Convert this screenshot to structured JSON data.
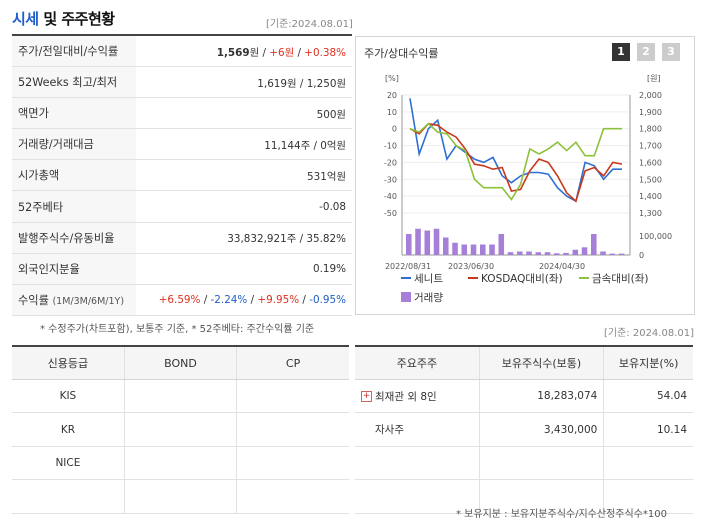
{
  "header": {
    "title_blue": "시세",
    "title_rest": "및 주주현황",
    "date": "[기준:2024.08.01]"
  },
  "info": [
    {
      "label": "주가/전일대비/수익률",
      "price": "1,569",
      "unit": "원",
      "change": "+6원",
      "rate": "+0.38%"
    },
    {
      "label": "52Weeks 최고/최저",
      "value": "1,619원 / 1,250원"
    },
    {
      "label": "액면가",
      "value": "500원"
    },
    {
      "label": "거래량/거래대금",
      "value": "11,144주 / 0억원"
    },
    {
      "label": "시가총액",
      "value": "531억원"
    },
    {
      "label": "52주베타",
      "value": "-0.08"
    },
    {
      "label": "발행주식수/유동비율",
      "value": "33,832,921주 / 35.82%"
    },
    {
      "label": "외국인지분율",
      "value": "0.19%"
    },
    {
      "label": "수익률",
      "period": "(1M/3M/6M/1Y)",
      "r1": "+6.59%",
      "r2": "-2.24%",
      "r3": "+9.95%",
      "r4": "-0.95%"
    }
  ],
  "note_left": "* 수정주가(차트포함), 보통주 기준, * 52주베타: 주간수익률 기준",
  "chart_panel": {
    "title": "주가/상대수익률",
    "tabs": [
      "1",
      "2",
      "3"
    ],
    "date": "[기준: 2024.08.01]"
  },
  "chart_data": {
    "type": "line",
    "left_unit": "[%]",
    "right_unit": "[원]",
    "left_ticks": [
      20,
      10,
      0,
      -10,
      -20,
      -30,
      -40,
      -50
    ],
    "right_ticks": [
      "2,000",
      "1,900",
      "1,800",
      "1,700",
      "1,600",
      "1,500",
      "1,400",
      "1,300"
    ],
    "volume_ticks": [
      "100,000",
      "0"
    ],
    "x_labels": [
      "2022/08/31",
      "2023/06/30",
      "2024/04/30"
    ],
    "ylim_pct": [
      -50,
      20
    ],
    "series": [
      {
        "name": "세니트",
        "color": "#2f6fd1",
        "values": [
          18,
          -15,
          0,
          5,
          -18,
          -10,
          -14,
          -18,
          -20,
          -17,
          -28,
          -32,
          -28,
          -26,
          -26,
          -27,
          -35,
          -40,
          -43,
          -20,
          -22,
          -30,
          -24,
          -24
        ]
      },
      {
        "name": "KOSDAQ대비(좌)",
        "color": "#c8381c",
        "values": [
          0,
          -3,
          3,
          2,
          -2,
          -5,
          -12,
          -21,
          -22,
          -24,
          -23,
          -37,
          -36,
          -25,
          -18,
          -20,
          -28,
          -38,
          -43,
          -25,
          -23,
          -28,
          -20,
          -21
        ]
      },
      {
        "name": "금속대비(좌)",
        "color": "#8dc13a",
        "values": [
          0,
          -2,
          3,
          -2,
          -3,
          -10,
          -13,
          -30,
          -35,
          -35,
          -35,
          -42,
          -33,
          -12,
          -15,
          -12,
          -8,
          -13,
          -8,
          -16,
          -16,
          0,
          0,
          0
        ]
      }
    ],
    "volume": {
      "name": "거래량",
      "color": "#a57fd8",
      "values": [
        0.6,
        0.75,
        0.7,
        0.75,
        0.5,
        0.35,
        0.3,
        0.3,
        0.3,
        0.3,
        0.6,
        0.08,
        0.1,
        0.1,
        0.08,
        0.08,
        0.05,
        0.06,
        0.15,
        0.22,
        0.6,
        0.1,
        0.04,
        0.04
      ]
    }
  },
  "credit": {
    "headers": [
      "신용등급",
      "BOND",
      "CP"
    ],
    "rows": [
      [
        "KIS",
        "",
        ""
      ],
      [
        "KR",
        "",
        ""
      ],
      [
        "NICE",
        "",
        ""
      ],
      [
        "",
        "",
        ""
      ]
    ]
  },
  "holders": {
    "headers": [
      "주요주주",
      "보유주식수(보통)",
      "보유지분(%)"
    ],
    "rows": [
      {
        "name": "최재관 외 8인",
        "shares": "18,283,074",
        "pct": "54.04",
        "expand": "+"
      },
      {
        "name": "자사주",
        "shares": "3,430,000",
        "pct": "10.14"
      },
      {
        "name": "",
        "shares": "",
        "pct": ""
      },
      {
        "name": "",
        "shares": "",
        "pct": ""
      }
    ]
  },
  "note_right": "* 보유지분 : 보유지분주식수/지수산정주식수*100"
}
